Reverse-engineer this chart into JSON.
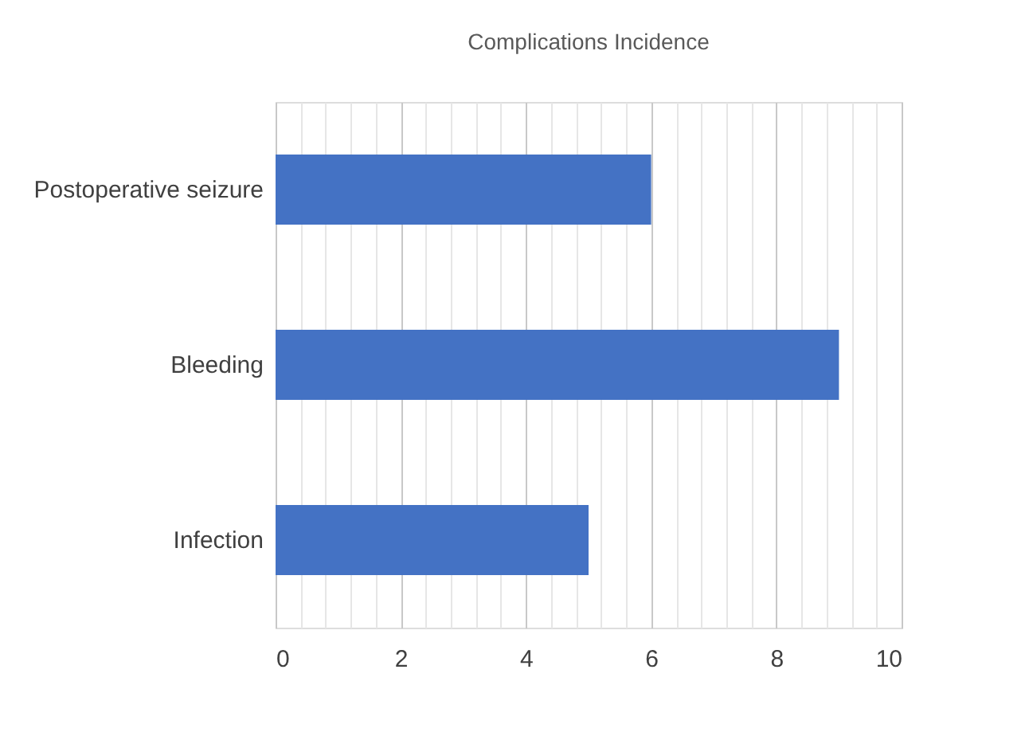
{
  "chart_data": {
    "type": "bar",
    "orientation": "horizontal",
    "title": "Complications Incidence",
    "categories": [
      "Postoperative seizure",
      "Bleeding",
      "Infection"
    ],
    "values": [
      6,
      9,
      5
    ],
    "color": "#4472c4",
    "xlim": [
      0,
      10
    ],
    "xticks": [
      0,
      {
        "value": 0.4,
        "label": null
      },
      {
        "value": 0.8,
        "label": null
      },
      {
        "value": 1.2,
        "label": null
      },
      {
        "value": 1.6,
        "label": null
      },
      2,
      {
        "value": 2.4,
        "label": null
      },
      {
        "value": 2.8,
        "label": null
      },
      {
        "value": 3.2,
        "label": null
      },
      {
        "value": 3.6,
        "label": null
      },
      4,
      {
        "value": 4.4,
        "label": null
      },
      {
        "value": 4.8,
        "label": null
      },
      {
        "value": 5.2,
        "label": null
      },
      {
        "value": 5.6,
        "label": null
      },
      6,
      {
        "value": 6.4,
        "label": null
      },
      {
        "value": 6.8,
        "label": null
      },
      {
        "value": 7.2,
        "label": null
      },
      {
        "value": 7.6,
        "label": null
      },
      8,
      {
        "value": 8.4,
        "label": null
      },
      {
        "value": 8.8,
        "label": null
      },
      {
        "value": 9.2,
        "label": null
      },
      {
        "value": 9.6,
        "label": null
      },
      10
    ],
    "grid": "x"
  }
}
